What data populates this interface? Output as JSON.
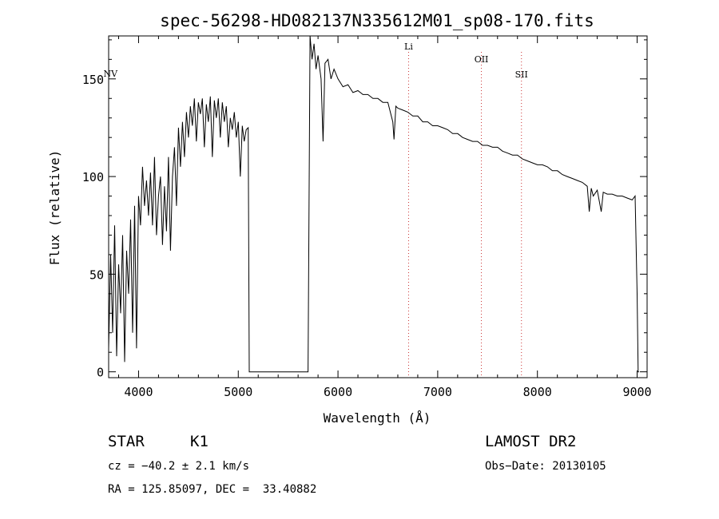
{
  "chart_data": {
    "type": "line",
    "title": "spec-56298-HD082137N335612M01_sp08-170.fits",
    "xlabel": "Wavelength (Å)",
    "ylabel": "Flux (relative)",
    "xlim": [
      3700,
      9100
    ],
    "ylim": [
      -3,
      172
    ],
    "xticks": [
      4000,
      5000,
      6000,
      7000,
      8000,
      9000
    ],
    "yticks": [
      0,
      50,
      100,
      150
    ],
    "grid": false,
    "series": [
      {
        "x": [
          3700,
          3720,
          3740,
          3760,
          3780,
          3800,
          3820,
          3840,
          3860,
          3880,
          3900,
          3920,
          3940,
          3960,
          3980,
          4000,
          4020,
          4040,
          4060,
          4080,
          4100,
          4120,
          4140,
          4160,
          4180,
          4200,
          4220,
          4240,
          4260,
          4280,
          4300,
          4320,
          4340,
          4360,
          4380,
          4400,
          4420,
          4440,
          4460,
          4480,
          4500,
          4520,
          4540,
          4560,
          4580,
          4600,
          4620,
          4640,
          4660,
          4680,
          4700,
          4720,
          4740,
          4760,
          4780,
          4800,
          4820,
          4840,
          4860,
          4880,
          4900,
          4920,
          4940,
          4960,
          4980,
          5000,
          5020,
          5040,
          5060,
          5080,
          5100,
          5110,
          5115,
          5130,
          5300,
          5500,
          5690,
          5695,
          5700,
          5720,
          5740,
          5760,
          5780,
          5800,
          5830,
          5850,
          5870,
          5900,
          5930,
          5960,
          6000,
          6050,
          6100,
          6150,
          6200,
          6250,
          6300,
          6350,
          6400,
          6450,
          6500,
          6550,
          6562,
          6580,
          6600,
          6650,
          6700,
          6750,
          6800,
          6850,
          6900,
          6950,
          7000,
          7050,
          7100,
          7150,
          7200,
          7250,
          7300,
          7350,
          7400,
          7450,
          7500,
          7550,
          7600,
          7650,
          7700,
          7750,
          7800,
          7850,
          7900,
          7950,
          8000,
          8050,
          8100,
          8150,
          8200,
          8250,
          8300,
          8350,
          8400,
          8450,
          8500,
          8520,
          8540,
          8560,
          8600,
          8640,
          8660,
          8700,
          8750,
          8800,
          8850,
          8900,
          8950,
          8980,
          9000,
          9010,
          9020
        ],
        "y": [
          12,
          60,
          20,
          75,
          8,
          55,
          30,
          70,
          5,
          62,
          40,
          78,
          20,
          85,
          12,
          90,
          75,
          105,
          85,
          98,
          80,
          102,
          75,
          110,
          70,
          90,
          100,
          65,
          95,
          72,
          110,
          62,
          100,
          115,
          85,
          125,
          105,
          128,
          110,
          133,
          120,
          136,
          126,
          140,
          118,
          138,
          132,
          140,
          115,
          137,
          128,
          141,
          110,
          139,
          130,
          140,
          120,
          138,
          128,
          136,
          115,
          130,
          124,
          133,
          120,
          128,
          100,
          126,
          118,
          124,
          125,
          0,
          0,
          0,
          0,
          0,
          0,
          0,
          0,
          172,
          160,
          168,
          155,
          162,
          150,
          118,
          158,
          160,
          150,
          155,
          150,
          146,
          147,
          143,
          144,
          142,
          142,
          140,
          140,
          138,
          138,
          128,
          119,
          136,
          135,
          134,
          133,
          131,
          131,
          128,
          128,
          126,
          126,
          125,
          124,
          122,
          122,
          120,
          119,
          118,
          118,
          116,
          116,
          115,
          115,
          113,
          112,
          111,
          111,
          109,
          108,
          107,
          106,
          106,
          105,
          103,
          103,
          101,
          100,
          99,
          98,
          97,
          95,
          82,
          94,
          90,
          93,
          82,
          92,
          91,
          91,
          90,
          90,
          89,
          88,
          90,
          40,
          0,
          0
        ]
      }
    ],
    "annotations": [
      {
        "label": "NV",
        "x": 3718
      },
      {
        "label": "Li",
        "x": 6708
      },
      {
        "label": "OII",
        "x": 7438
      },
      {
        "label": "SII",
        "x": 7840
      }
    ]
  },
  "info": {
    "object_class": "STAR",
    "subclass": "K1",
    "survey": "LAMOST DR2",
    "cz": "cz = −40.2 ± 2.1 km/s",
    "obs_date": "Obs−Date: 20130105",
    "coords": "RA = 125.85097, DEC =  33.40882"
  },
  "colors": {
    "spectrum": "#000000",
    "line_markers": "#cc3333",
    "axes": "#000000"
  }
}
